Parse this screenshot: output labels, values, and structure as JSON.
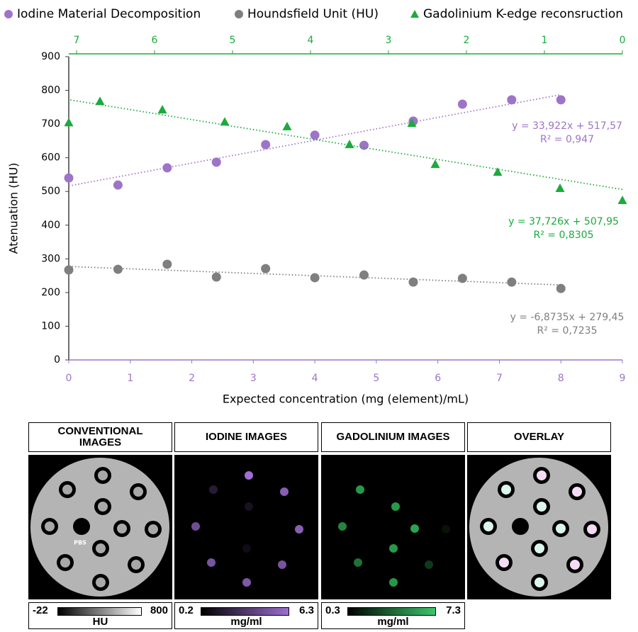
{
  "chart_data": {
    "type": "scatter",
    "ylabel": "Atenuation (HU)",
    "xlabel": "Expected concentration (mg (element)/mL)",
    "xlim": [
      0,
      9
    ],
    "xticks": [
      0,
      1,
      2,
      3,
      4,
      5,
      6,
      7,
      8,
      9
    ],
    "x2lim": [
      7.1,
      0
    ],
    "x2ticks": [
      7,
      6,
      5,
      4,
      3,
      2,
      1,
      0
    ],
    "ylim": [
      0,
      900
    ],
    "yticks": [
      0,
      100,
      200,
      300,
      400,
      500,
      600,
      700,
      800,
      900
    ],
    "grid": false,
    "series": [
      {
        "name": "Iodine Material Decomposition",
        "color": "#9e74c9",
        "marker": "circle",
        "x": [
          0,
          0.8,
          1.6,
          2.4,
          3.2,
          4,
          4.8,
          5.6,
          6.4,
          7.2,
          8
        ],
        "values": [
          540,
          519,
          570,
          587,
          639,
          667,
          637,
          709,
          759,
          772,
          772
        ],
        "trendline_label": [
          "y = 33,922x + 517,57",
          "R² = 0,947"
        ]
      },
      {
        "name": "Houndsfield Unit (HU)",
        "color": "#7f7f7f",
        "marker": "circle",
        "x": [
          0,
          0.8,
          1.6,
          2.4,
          3.2,
          4,
          4.8,
          5.6,
          6.4,
          7.2,
          8
        ],
        "values": [
          267,
          269,
          284,
          246,
          271,
          244,
          252,
          231,
          242,
          231,
          212
        ],
        "trendline_label": [
          "y = -6,8735x + 279,45",
          "R² = 0,7235"
        ]
      },
      {
        "name": "Gadolinium K-edge reconsruction",
        "color": "#1aab3c",
        "marker": "triangle",
        "axis": "x2",
        "x": [
          7.1,
          6.7,
          5.9,
          5.1,
          4.3,
          3.5,
          2.7,
          2.4,
          1.6,
          0.8,
          0
        ],
        "values": [
          704,
          767,
          742,
          706,
          692,
          639,
          702,
          580,
          557,
          509,
          473
        ],
        "trendline_label": [
          "y = 37,726x + 507,95",
          "R² = 0,8305"
        ]
      }
    ]
  },
  "image_panels": [
    {
      "title": "CONVENTIONAL IMAGES",
      "colorbar": {
        "min": -22,
        "max": 800,
        "unit": "HU"
      }
    },
    {
      "title": "IODINE IMAGES",
      "colorbar": {
        "min": 0.2,
        "max": 6.3,
        "unit": "mg/ml"
      }
    },
    {
      "title": "GADOLINIUM IMAGES",
      "colorbar": {
        "min": 0.3,
        "max": 7.3,
        "unit": "mg/ml"
      }
    },
    {
      "title": "OVERLAY"
    }
  ],
  "pbs_label": "PBS"
}
